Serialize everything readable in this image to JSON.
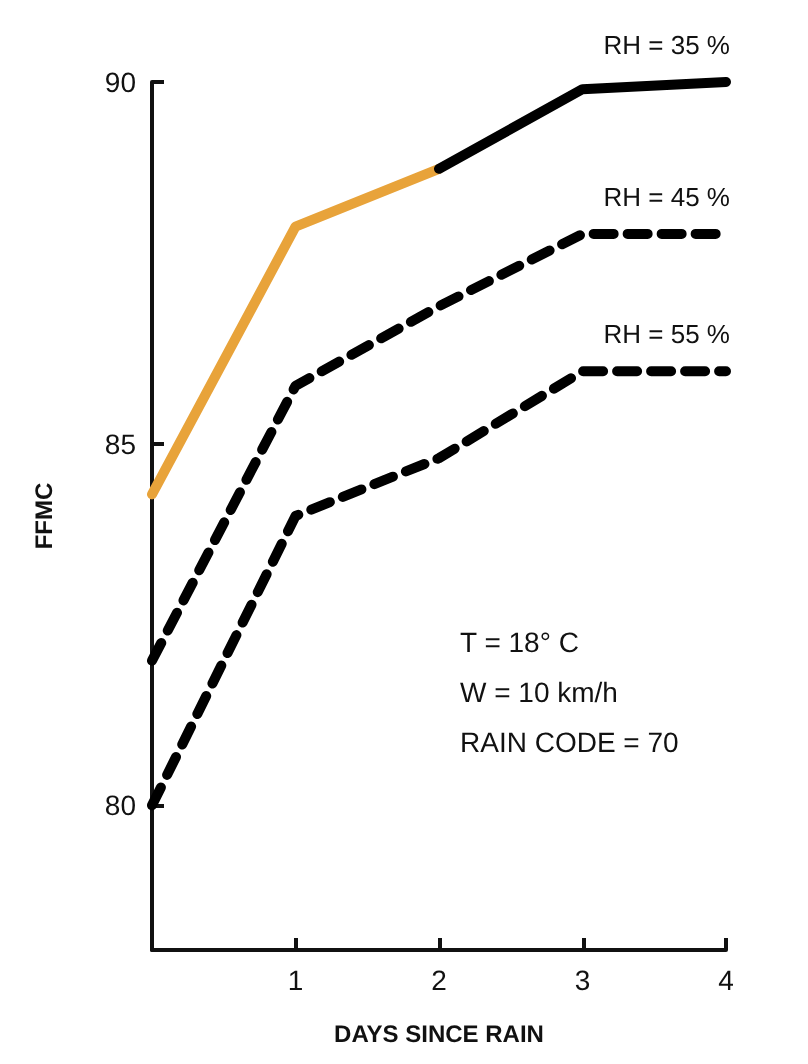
{
  "chart_data": {
    "type": "line",
    "xlabel": "DAYS SINCE RAIN",
    "ylabel": "FFMC",
    "xlim": [
      0,
      4
    ],
    "xticks": [
      1,
      2,
      3,
      4
    ],
    "ylim": [
      78,
      90
    ],
    "yticks": [
      80,
      85,
      90
    ],
    "grid": false,
    "legend": false,
    "marker": "none",
    "series": [
      {
        "color": "#e8a33a",
        "x": [
          0,
          1,
          2
        ],
        "values": [
          84.3,
          88.0,
          88.8
        ],
        "line_style": "solid"
      },
      {
        "name": "RH = 35 %",
        "color": "#000000",
        "x": [
          2,
          3,
          4
        ],
        "values": [
          88.8,
          89.9,
          90.0
        ],
        "line_style": "solid"
      },
      {
        "name": "RH = 45 %",
        "color": "#000000",
        "x": [
          0,
          1,
          2,
          3,
          4
        ],
        "values": [
          82.0,
          85.8,
          86.9,
          87.9,
          87.9
        ],
        "line_style": "dashed"
      },
      {
        "name": "RH = 55 %",
        "color": "#000000",
        "x": [
          0,
          1,
          2,
          3,
          4
        ],
        "values": [
          80.0,
          84.0,
          84.8,
          86.0,
          86.0
        ],
        "line_style": "dashed"
      }
    ],
    "annotations": [
      "T = 18° C",
      "W = 10 km/h",
      "RAIN CODE = 70"
    ]
  }
}
